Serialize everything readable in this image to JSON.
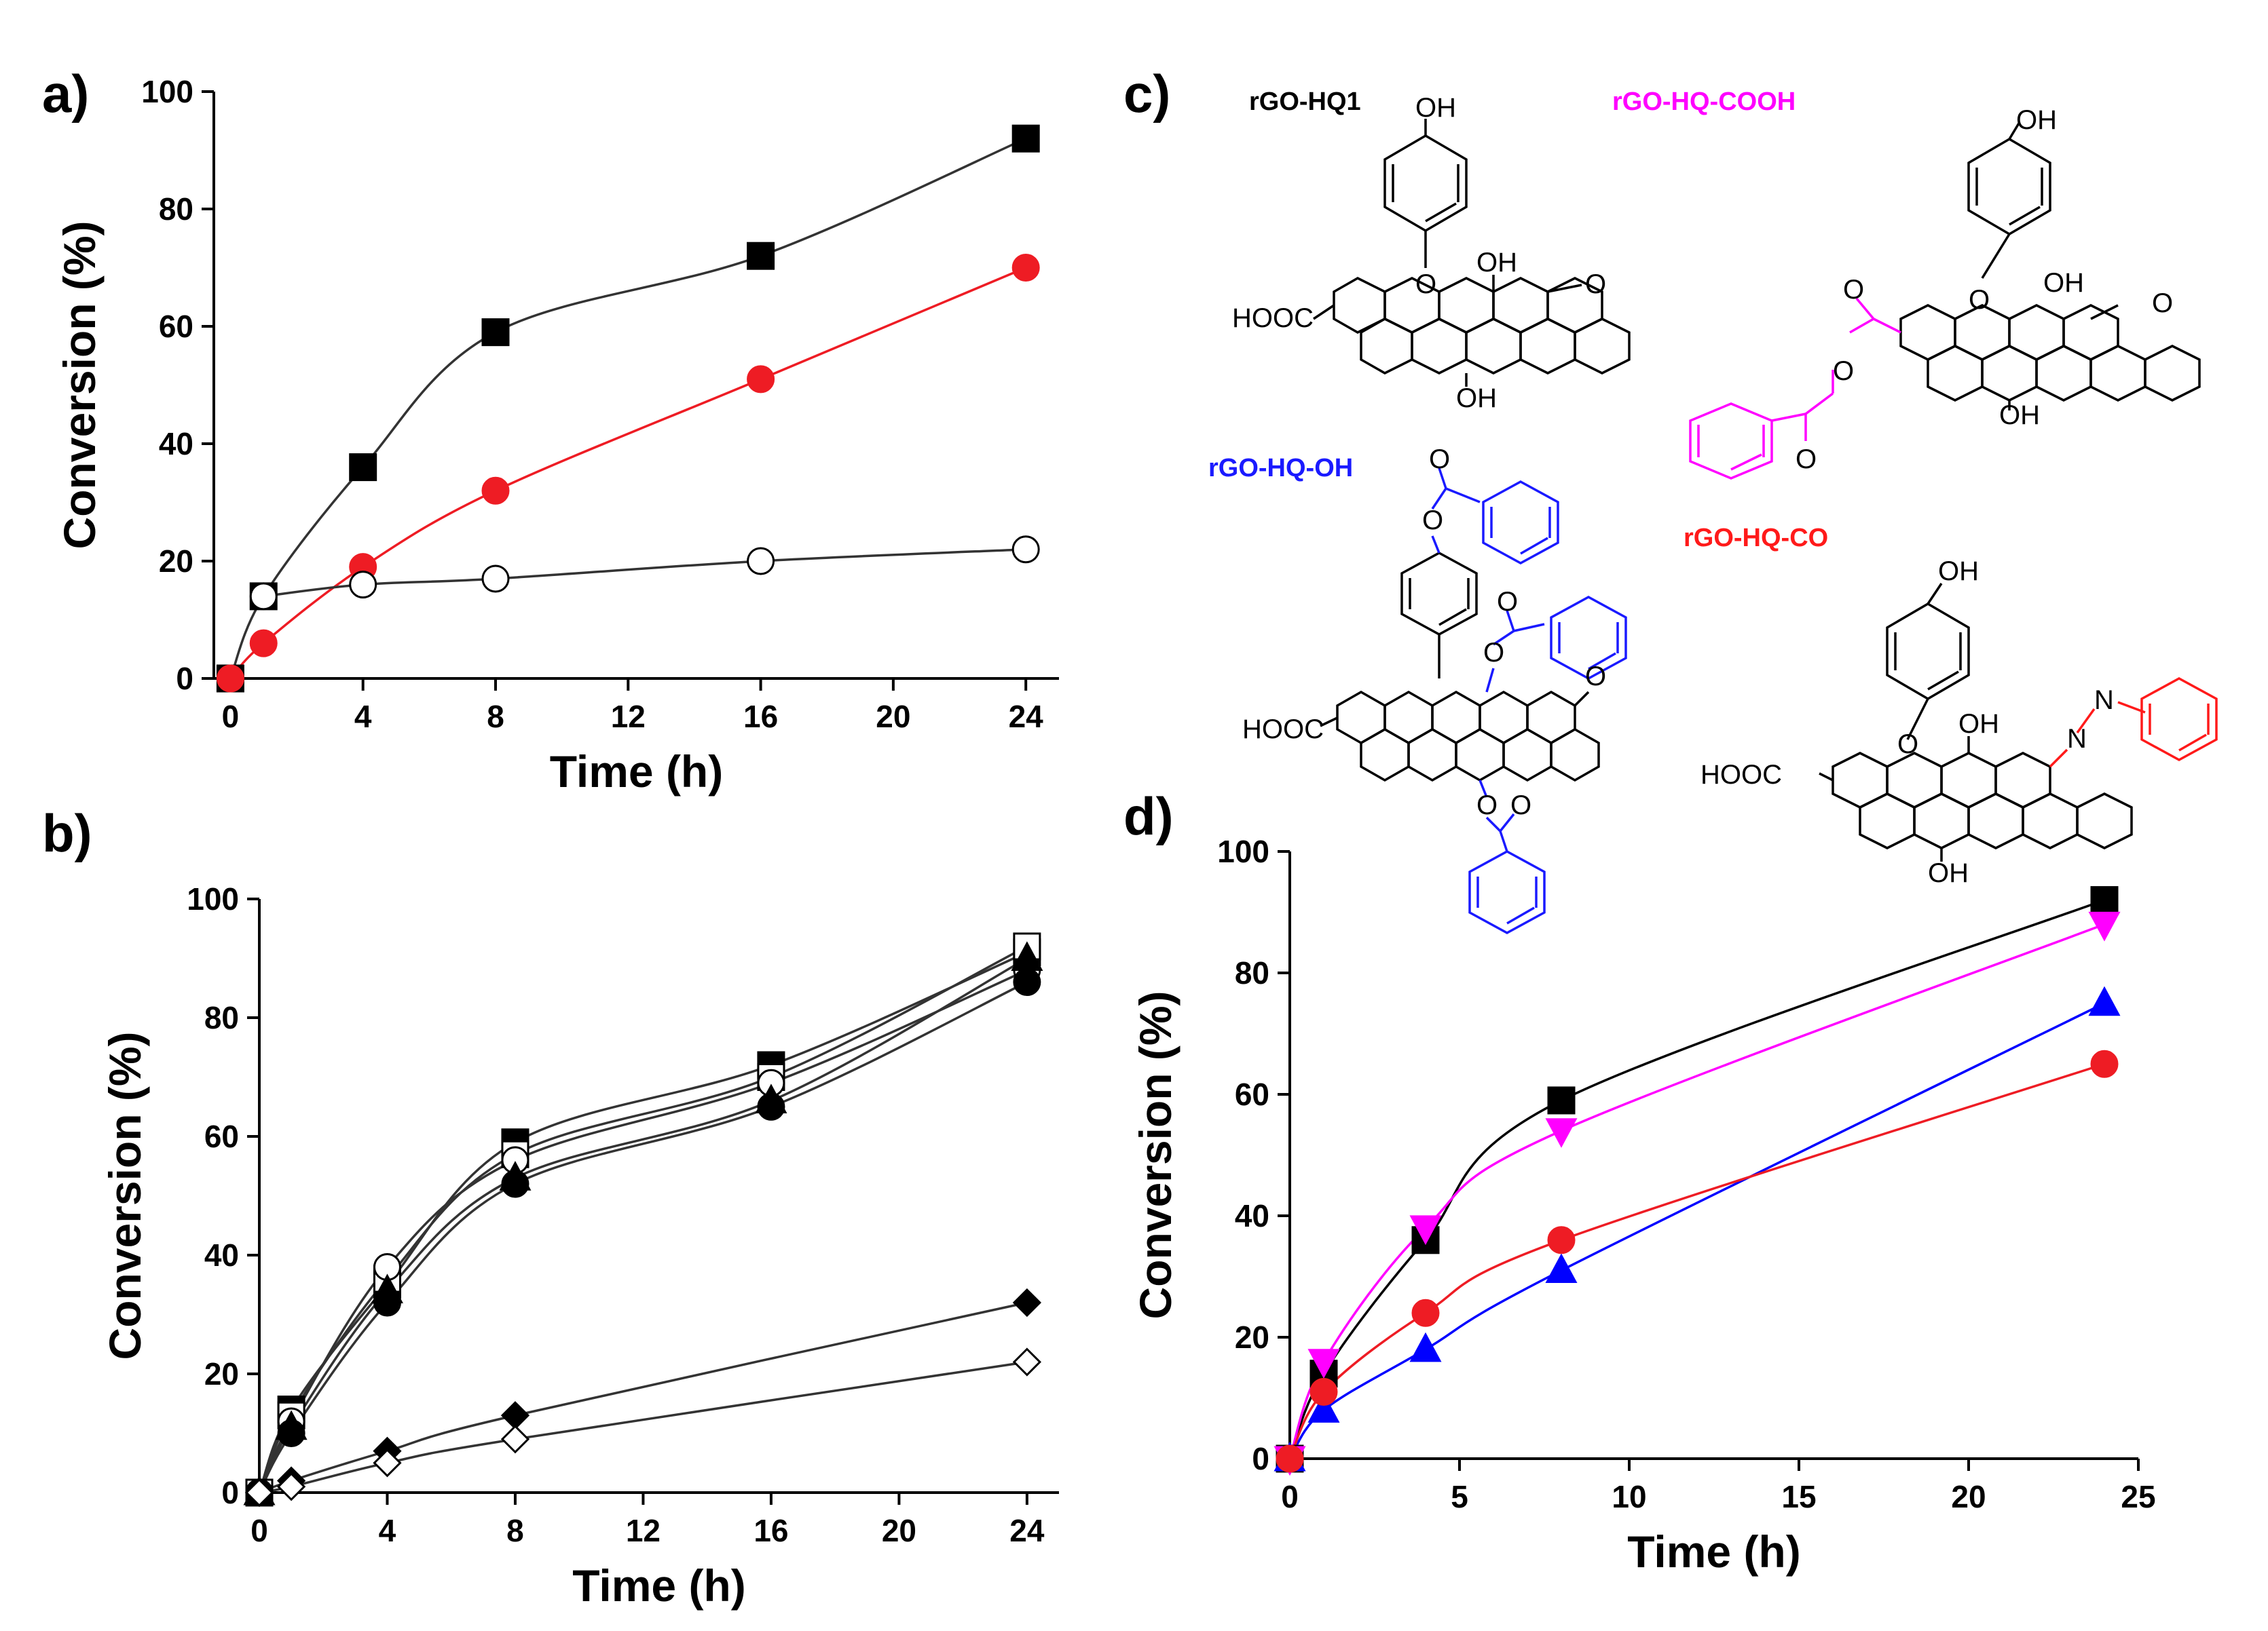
{
  "figure": {
    "panel_labels": [
      "a)",
      "b)",
      "c)",
      "d)"
    ]
  },
  "chart_data": [
    {
      "id": "a",
      "type": "line",
      "title": "",
      "xlabel": "Time (h)",
      "ylabel": "Conversion (%)",
      "xlim": [
        -0.5,
        25
      ],
      "ylim": [
        0,
        100
      ],
      "xticks": [
        0,
        4,
        8,
        12,
        16,
        20,
        24
      ],
      "yticks": [
        0,
        20,
        40,
        60,
        80,
        100
      ],
      "series": [
        {
          "name": "filled square",
          "marker": "square",
          "fill": "#000000",
          "stroke": "#000000",
          "line": "#333333",
          "x": [
            0,
            1,
            4,
            8,
            16,
            24
          ],
          "y": [
            0,
            14,
            36,
            59,
            72,
            92
          ]
        },
        {
          "name": "filled circle",
          "marker": "circle",
          "fill": "#ee1c24",
          "stroke": "#ee1c24",
          "line": "#ee1c24",
          "x": [
            0,
            1,
            4,
            8,
            16,
            24
          ],
          "y": [
            0,
            6,
            19,
            32,
            51,
            70
          ]
        },
        {
          "name": "open circle",
          "marker": "circle",
          "fill": "#ffffff",
          "stroke": "#000000",
          "line": "#333333",
          "x": [
            1,
            4,
            8,
            16,
            24
          ],
          "y": [
            14,
            16,
            17,
            20,
            22
          ]
        }
      ]
    },
    {
      "id": "b",
      "type": "line",
      "title": "",
      "xlabel": "Time (h)",
      "ylabel": "Conversion (%)",
      "xlim": [
        0,
        25
      ],
      "ylim": [
        0,
        100
      ],
      "xticks": [
        0,
        4,
        8,
        12,
        16,
        20,
        24
      ],
      "yticks": [
        0,
        20,
        40,
        60,
        80,
        100
      ],
      "series": [
        {
          "name": "filled square",
          "marker": "square",
          "fill": "#000000",
          "stroke": "#000000",
          "line": "#333333",
          "x": [
            0,
            1,
            4,
            8,
            16,
            24
          ],
          "y": [
            0,
            14,
            35,
            59,
            72,
            91
          ]
        },
        {
          "name": "open square",
          "marker": "square",
          "fill": "#ffffff",
          "stroke": "#000000",
          "line": "#333333",
          "x": [
            0,
            1,
            4,
            8,
            16,
            24
          ],
          "y": [
            0,
            13,
            36,
            57,
            70,
            92
          ]
        },
        {
          "name": "open circle",
          "marker": "circle",
          "fill": "#ffffff",
          "stroke": "#000000",
          "line": "#333333",
          "x": [
            0,
            1,
            4,
            8,
            16,
            24
          ],
          "y": [
            0,
            12,
            38,
            56,
            69,
            88
          ]
        },
        {
          "name": "filled triangle",
          "marker": "triangle",
          "fill": "#000000",
          "stroke": "#000000",
          "line": "#333333",
          "x": [
            0,
            1,
            4,
            8,
            16,
            24
          ],
          "y": [
            0,
            11,
            34,
            53,
            66,
            90
          ]
        },
        {
          "name": "filled circle",
          "marker": "circle",
          "fill": "#000000",
          "stroke": "#000000",
          "line": "#333333",
          "x": [
            0,
            1,
            4,
            8,
            16,
            24
          ],
          "y": [
            0,
            10,
            32,
            52,
            65,
            86
          ]
        },
        {
          "name": "filled diamond",
          "marker": "diamond",
          "fill": "#000000",
          "stroke": "#000000",
          "line": "#333333",
          "x": [
            0,
            1,
            4,
            8,
            24
          ],
          "y": [
            0,
            2,
            7,
            13,
            32
          ]
        },
        {
          "name": "open diamond",
          "marker": "diamond",
          "fill": "#ffffff",
          "stroke": "#000000",
          "line": "#333333",
          "x": [
            0,
            1,
            4,
            8,
            24
          ],
          "y": [
            0,
            1,
            5,
            9,
            22
          ]
        }
      ]
    },
    {
      "id": "d",
      "type": "line",
      "title": "",
      "xlabel": "Time (h)",
      "ylabel": "Conversion (%)",
      "xlim": [
        0,
        25
      ],
      "ylim": [
        0,
        100
      ],
      "xticks": [
        0,
        5,
        10,
        15,
        20,
        25
      ],
      "yticks": [
        0,
        20,
        40,
        60,
        80,
        100
      ],
      "series": [
        {
          "name": "rGO-HQ1",
          "marker": "square",
          "fill": "#000000",
          "stroke": "#000000",
          "line": "#000000",
          "x": [
            0,
            1,
            4,
            8,
            24
          ],
          "y": [
            0,
            14,
            36,
            59,
            92
          ]
        },
        {
          "name": "rGO-HQ-COOH",
          "marker": "triangle-down",
          "fill": "#ff00ff",
          "stroke": "#ff00ff",
          "line": "#ff00ff",
          "x": [
            0,
            1,
            4,
            8,
            24
          ],
          "y": [
            0,
            16,
            38,
            54,
            88
          ]
        },
        {
          "name": "rGO-HQ-OH",
          "marker": "triangle",
          "fill": "#0000ff",
          "stroke": "#0000ff",
          "line": "#0000ff",
          "x": [
            0,
            1,
            4,
            8,
            24
          ],
          "y": [
            0,
            8,
            18,
            31,
            75
          ]
        },
        {
          "name": "rGO-HQ-CO",
          "marker": "circle",
          "fill": "#ee1c24",
          "stroke": "#ee1c24",
          "line": "#ee1c24",
          "x": [
            0,
            1,
            4,
            8,
            24
          ],
          "y": [
            0,
            11,
            24,
            36,
            65
          ]
        }
      ]
    }
  ],
  "structures": {
    "labels": {
      "hq1": {
        "text": "rGO-HQ1",
        "color": "#000000"
      },
      "cooh": {
        "text": "rGO-HQ-COOH",
        "color": "#ff00ff"
      },
      "oh": {
        "text": "rGO-HQ-OH",
        "color": "#1a1aff"
      },
      "co": {
        "text": "rGO-HQ-CO",
        "color": "#ff1a1a"
      }
    },
    "atoms": {
      "oh": "OH",
      "o": "O",
      "hooc": "HOOC",
      "n": "N"
    }
  }
}
